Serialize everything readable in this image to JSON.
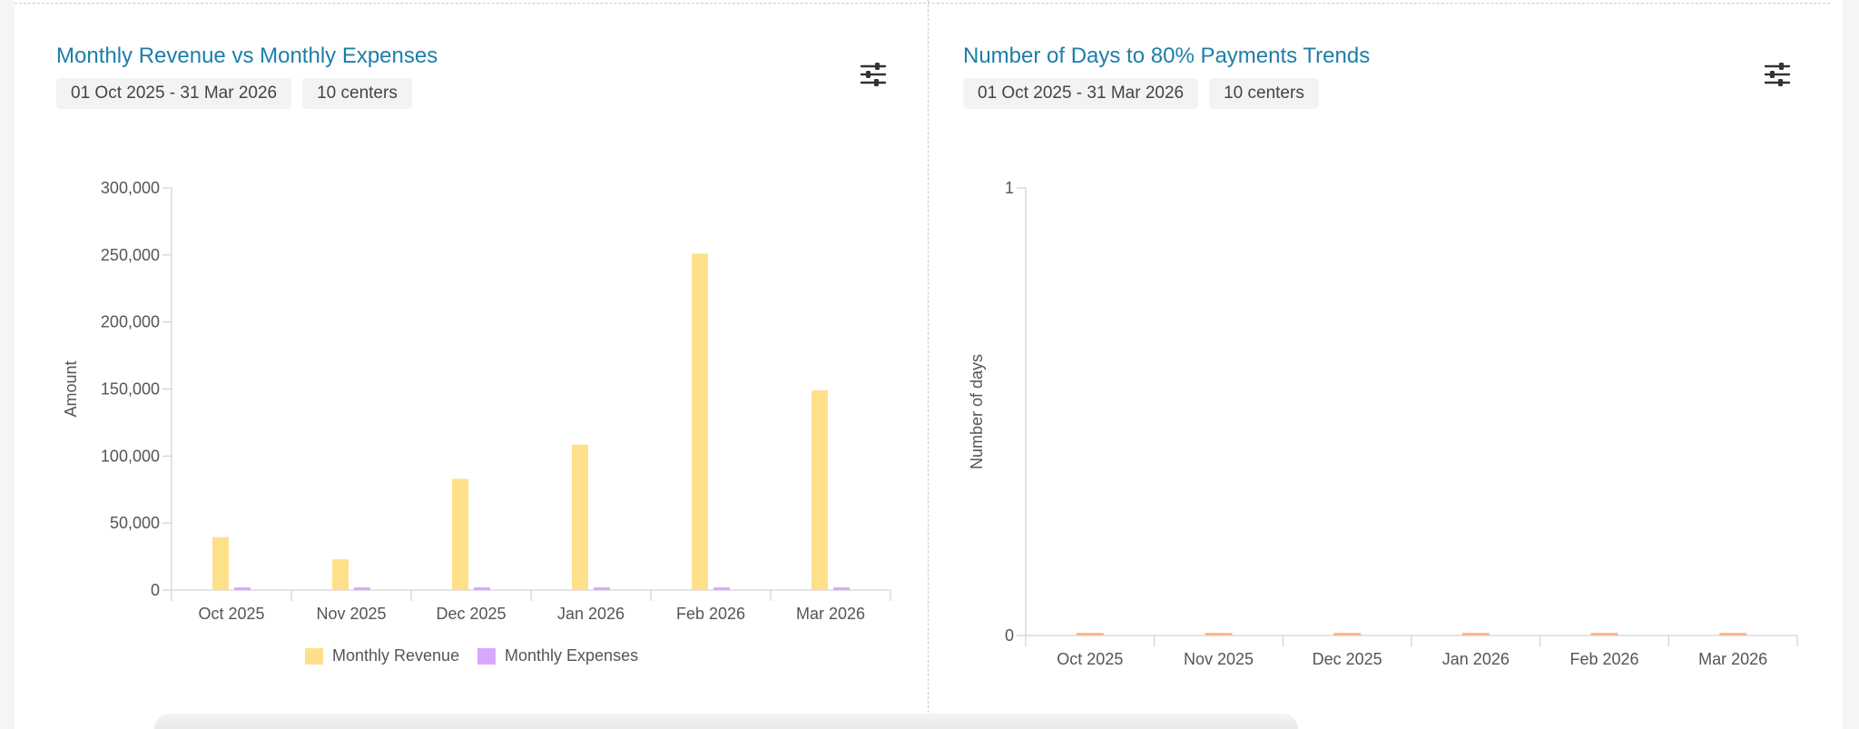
{
  "cards": [
    {
      "title": "Monthly Revenue vs Monthly Expenses",
      "date_range": "01 Oct 2025 - 31 Mar 2026",
      "centers": "10 centers",
      "filter_icon": "sliders-icon"
    },
    {
      "title": "Number of Days to 80% Payments Trends",
      "date_range": "01 Oct 2025 - 31 Mar 2026",
      "centers": "10 centers",
      "filter_icon": "sliders-icon"
    }
  ],
  "chart_data": [
    {
      "type": "bar",
      "categories": [
        "Oct 2025",
        "Nov 2025",
        "Dec 2025",
        "Jan 2026",
        "Feb 2026",
        "Mar 2026"
      ],
      "series": [
        {
          "name": "Monthly Revenue",
          "values": [
            39500,
            23000,
            83000,
            108500,
            251000,
            149000
          ],
          "color": "#ffe08a"
        },
        {
          "name": "Monthly Expenses",
          "values": [
            1500,
            1500,
            1500,
            1500,
            1500,
            1500
          ],
          "color": "#d8a8ff"
        }
      ],
      "ylabel": "Amount",
      "ylim": [
        0,
        300000
      ],
      "yticks": [
        0,
        50000,
        100000,
        150000,
        200000,
        250000,
        300000
      ],
      "ytick_labels": [
        "0",
        "50,000",
        "100,000",
        "150,000",
        "200,000",
        "250,000",
        "300,000"
      ],
      "legend": "bottom",
      "grid": false
    },
    {
      "type": "bar",
      "categories": [
        "Oct 2025",
        "Nov 2025",
        "Dec 2025",
        "Jan 2026",
        "Feb 2026",
        "Mar 2026"
      ],
      "series": [
        {
          "values": [
            0,
            0,
            0,
            0,
            0,
            0
          ],
          "color": "#ffb98a"
        }
      ],
      "ylabel": "Number of days",
      "ylim": [
        0,
        1
      ],
      "yticks": [
        0,
        1
      ],
      "ytick_labels": [
        "0",
        "1"
      ],
      "grid": false
    }
  ]
}
